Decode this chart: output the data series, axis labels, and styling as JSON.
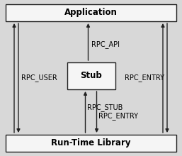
{
  "bg_color": "#d8d8d8",
  "box_color": "#f5f5f5",
  "box_edge_color": "#222222",
  "title": "Application",
  "bottom_label": "Run-Time Library",
  "center_label": "Stub",
  "labels": {
    "rpc_api": "RPC_API",
    "rpc_user": "RPC_USER",
    "rpc_entry_right": "RPC_ENTRY",
    "rpc_stub": "RPC_STUB",
    "rpc_entry_bottom": "RPC_ENTRY"
  },
  "font_size_main": 8.5,
  "font_size_label": 7.0,
  "fig_w": 2.57,
  "fig_h": 2.2,
  "dpi": 100
}
